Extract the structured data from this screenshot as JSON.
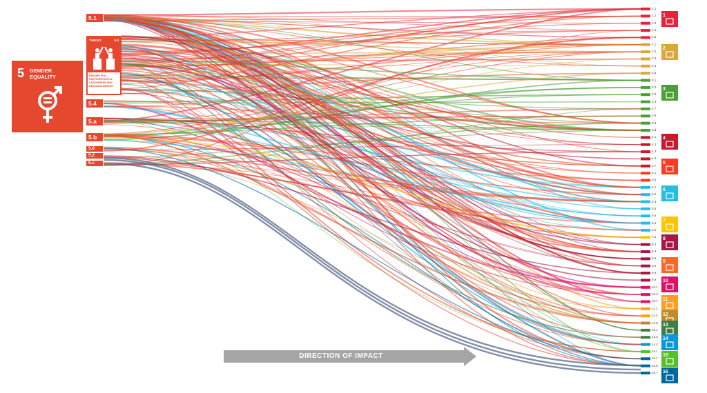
{
  "goal": {
    "number": "5",
    "title_line1": "GENDER",
    "title_line2": "EQUALITY",
    "color": "#e5482f",
    "icon": "gender-equality-icon"
  },
  "target_card": {
    "word": "TARGET",
    "id": "5-5",
    "text": "ENSURE FULL PARTICIPATION IN LEADERSHIP AND DECISION-MAKING",
    "icon": "podium-people-icon"
  },
  "source_targets": [
    "5.1",
    "5.4",
    "5.a",
    "5.b",
    "5.6",
    "5.2",
    "5.c"
  ],
  "destination_targets": [
    "1.1",
    "1.2",
    "1.3",
    "1.4",
    "1.5",
    "2.1",
    "2.2",
    "2.3",
    "2.4",
    "2.a",
    "3.1",
    "3.2",
    "3.3",
    "3.4",
    "3.7",
    "3.8",
    "3.9",
    "3.d",
    "4.1",
    "4.2",
    "4.3",
    "4.4",
    "4.7",
    "5.1",
    "5.5",
    "6.1",
    "6.2",
    "6.3",
    "6.5",
    "6.6",
    "6.a",
    "6.b",
    "7.a",
    "8.2",
    "8.3",
    "8.4",
    "8.5",
    "8.6",
    "8.8",
    "10.1",
    "10.2",
    "10.7",
    "11.1",
    "11.2",
    "12.8",
    "13.1",
    "13.3",
    "14.4",
    "15.1",
    "16.1",
    "16.6",
    "16.7"
  ],
  "sdg_icons": [
    {
      "goal": "1",
      "name": "no-poverty-icon",
      "color": "#e5243b"
    },
    {
      "goal": "2",
      "name": "zero-hunger-icon",
      "color": "#dda63a"
    },
    {
      "goal": "3",
      "name": "good-health-icon",
      "color": "#4c9f38"
    },
    {
      "goal": "4",
      "name": "quality-education-icon",
      "color": "#c5192d"
    },
    {
      "goal": "5",
      "name": "gender-equality-icon",
      "color": "#ff3a21"
    },
    {
      "goal": "6",
      "name": "clean-water-icon",
      "color": "#26bde2"
    },
    {
      "goal": "7",
      "name": "affordable-energy-icon",
      "color": "#fcc30b"
    },
    {
      "goal": "8",
      "name": "decent-work-icon",
      "color": "#a21942"
    },
    {
      "goal": "9",
      "name": "industry-innovation-icon",
      "color": "#fd6925"
    },
    {
      "goal": "10",
      "name": "reduced-inequalities-icon",
      "color": "#dd1367"
    },
    {
      "goal": "11",
      "name": "sustainable-cities-icon",
      "color": "#fd9d24"
    },
    {
      "goal": "12",
      "name": "responsible-consumption-icon",
      "color": "#bf8b2e"
    },
    {
      "goal": "13",
      "name": "climate-action-icon",
      "color": "#3f7e44"
    },
    {
      "goal": "14",
      "name": "life-below-water-icon",
      "color": "#0a97d9"
    },
    {
      "goal": "15",
      "name": "life-on-land-icon",
      "color": "#56c02b"
    },
    {
      "goal": "16",
      "name": "peace-justice-icon",
      "color": "#00689d"
    }
  ],
  "direction_label": "DIRECTION OF IMPACT"
}
